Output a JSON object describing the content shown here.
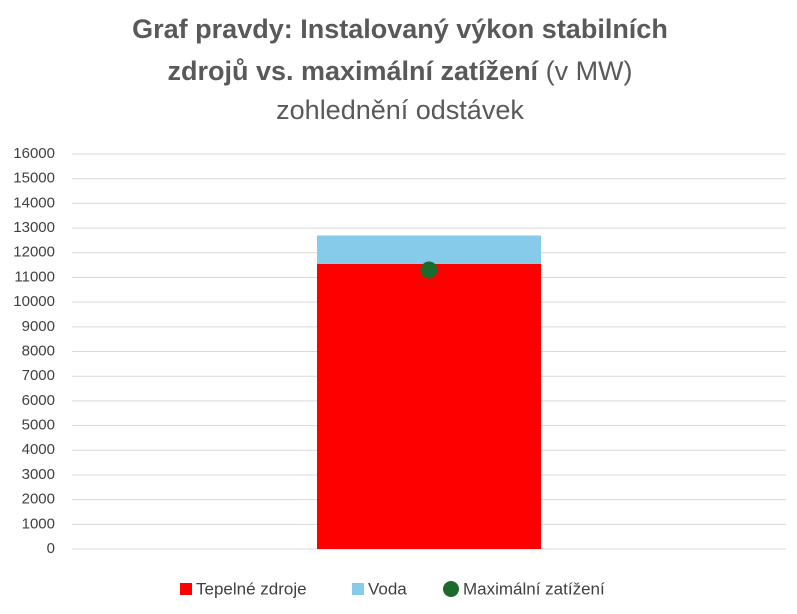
{
  "chart_data": {
    "type": "bar",
    "stacked": true,
    "title": [
      "Graf pravdy: Instalovaný výkon stabilních",
      "zdrojů vs. maximální zatížení"
    ],
    "title_suffix": "(v MW)",
    "subtitle": "zohlednění odstávek",
    "categories": [
      null
    ],
    "series": [
      {
        "name": "Tepelné zdroje",
        "color": "#ff0000",
        "values": [
          11550
        ]
      },
      {
        "name": "Voda",
        "color": "#87cbea",
        "values": [
          1150
        ]
      },
      {
        "name": "Maximální zatížení",
        "color": "#1d6b2c",
        "type": "point",
        "values": [
          11300
        ]
      }
    ],
    "ylim": [
      0,
      16000
    ],
    "yticks": [
      0,
      1000,
      2000,
      3000,
      4000,
      5000,
      6000,
      7000,
      8000,
      9000,
      10000,
      11000,
      12000,
      13000,
      14000,
      15000,
      16000
    ],
    "grid": true,
    "legend": "bottom"
  }
}
